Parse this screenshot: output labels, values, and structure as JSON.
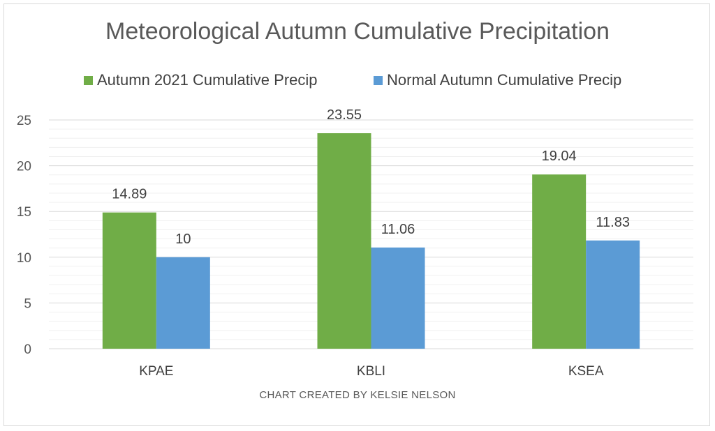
{
  "chart_data": {
    "type": "bar",
    "title": "Meteorological Autumn Cumulative Precipitation",
    "categories": [
      "KPAE",
      "KBLI",
      "KSEA"
    ],
    "series": [
      {
        "name": "Autumn 2021 Cumulative Precip",
        "values": [
          14.89,
          23.55,
          19.04
        ],
        "color": "#70ad47"
      },
      {
        "name": "Normal Autumn Cumulative Precip",
        "values": [
          10,
          11.06,
          11.83
        ],
        "color": "#5b9bd5"
      }
    ],
    "data_labels": [
      [
        "14.89",
        "23.55",
        "19.04"
      ],
      [
        "10",
        "11.06",
        "11.83"
      ]
    ],
    "ylim": [
      0,
      25
    ],
    "yticks": [
      0,
      5,
      10,
      15,
      20,
      25
    ],
    "xlabel": "",
    "ylabel": "",
    "grid": true,
    "legend_position": "top",
    "footer": "CHART CREATED BY KELSIE NELSON"
  }
}
